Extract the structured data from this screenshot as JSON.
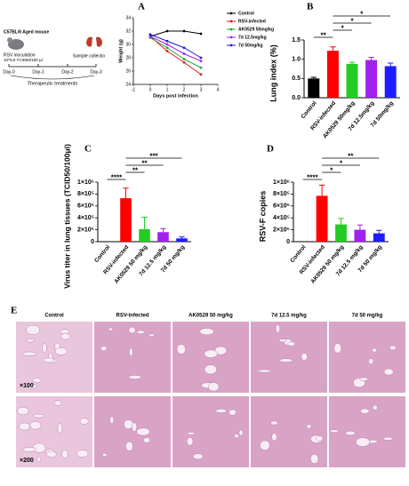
{
  "chart_data": [
    {
      "type": "line",
      "panel": "A",
      "ylabel": "Weight (g)",
      "xlabel": "Days post infection",
      "xlim": [
        -1,
        4
      ],
      "xticks": [
        -1,
        0,
        1,
        2,
        3,
        4
      ],
      "ylim": [
        24,
        34
      ],
      "yticks": [
        24,
        26,
        28,
        30,
        32,
        34
      ],
      "x": [
        0,
        1,
        2,
        3
      ],
      "series": [
        {
          "name": "Control",
          "color": "#000000",
          "values": [
            31.2,
            32,
            32,
            31.6
          ]
        },
        {
          "name": "RSV-infected",
          "color": "#e8141b",
          "values": [
            31.2,
            29,
            27.3,
            25.5
          ]
        },
        {
          "name": "AK0529 50mg/kg",
          "color": "#22a838",
          "values": [
            31,
            29.5,
            27.8,
            26.5
          ]
        },
        {
          "name": "7d 12.5mg/kg",
          "color": "#a020f0",
          "values": [
            31.2,
            30,
            28.6,
            27.5
          ]
        },
        {
          "name": "7d 50mg/kg",
          "color": "#1c1cd6",
          "values": [
            31.5,
            30.5,
            29.5,
            28
          ]
        }
      ]
    },
    {
      "type": "bar",
      "panel": "B",
      "ylabel": "Lung index (%)",
      "categories": [
        "Control",
        "RSV-infected",
        "AK0529 50mg/kg",
        "7d 12.5mg/kg",
        "7d 50mg/kg"
      ],
      "values": [
        0.5,
        1.22,
        0.88,
        0.98,
        0.82
      ],
      "errors": [
        0.03,
        0.1,
        0.04,
        0.07,
        0.08
      ],
      "colors": [
        "#000000",
        "#ff0000",
        "#22cc22",
        "#a020f0",
        "#1c1cff"
      ],
      "ylim": [
        0,
        1.5
      ],
      "yticks": [
        {
          "value": 0,
          "label": "0.0"
        },
        0.5,
        {
          "value": 1,
          "label": "1.0"
        },
        1.5
      ],
      "comparisons": [
        {
          "groups": [
            "Control",
            "RSV-infected"
          ],
          "label": "**"
        },
        {
          "groups": [
            "RSV-infected",
            "AK0529 50mg/kg"
          ],
          "label": "*"
        },
        {
          "groups": [
            "RSV-infected",
            "7d 12.5mg/kg"
          ],
          "label": "*"
        },
        {
          "groups": [
            "RSV-infected",
            "7d 50mg/kg"
          ],
          "label": "*"
        }
      ]
    },
    {
      "type": "bar",
      "panel": "C",
      "ylabel": "Virus titer in lung tissues (TCID50/100μl)",
      "categories": [
        "Control",
        "RSV-infected",
        "AK0529  50 mg/kg",
        "7d  12.5 mg/kg",
        "7d  50 mg/kg"
      ],
      "values": [
        0,
        730000,
        210000,
        160000,
        55000
      ],
      "errors": [
        0,
        170000,
        200000,
        60000,
        25000
      ],
      "colors": [
        "#000000",
        "#ff0000",
        "#22cc22",
        "#a020f0",
        "#1c1cff"
      ],
      "ylim": [
        0,
        1000000
      ],
      "yticks": [
        0,
        {
          "value": 200000,
          "label": "2×10⁵"
        },
        {
          "value": 400000,
          "label": "4×10⁵"
        },
        {
          "value": 600000,
          "label": "6×10⁵"
        },
        {
          "value": 800000,
          "label": "8×10⁵"
        },
        {
          "value": 1000000,
          "label": "1×10⁶"
        }
      ],
      "comparisons": [
        {
          "groups": [
            "Control",
            "RSV-infected"
          ],
          "label": "****"
        },
        {
          "groups": [
            "RSV-infected",
            "AK0529  50 mg/kg"
          ],
          "label": "**"
        },
        {
          "groups": [
            "RSV-infected",
            "7d  12.5 mg/kg"
          ],
          "label": "**"
        },
        {
          "groups": [
            "RSV-infected",
            "7d  50 mg/kg"
          ],
          "label": "***"
        }
      ]
    },
    {
      "type": "bar",
      "panel": "D",
      "ylabel": "RSV-F copies",
      "categories": [
        "Control",
        "RSV-infected",
        "AK0529 50 mg/kg",
        "7d 12.5 mg/kg",
        "7d 50 mg/kg"
      ],
      "values": [
        0,
        770000,
        290000,
        200000,
        140000
      ],
      "errors": [
        0,
        180000,
        100000,
        80000,
        50000
      ],
      "colors": [
        "#000000",
        "#ff0000",
        "#22cc22",
        "#a020f0",
        "#1c1cff"
      ],
      "ylim": [
        0,
        1000000
      ],
      "yticks": [
        0,
        {
          "value": 200000,
          "label": "2×10⁵"
        },
        {
          "value": 400000,
          "label": "4×10⁵"
        },
        {
          "value": 600000,
          "label": "6×10⁵"
        },
        {
          "value": 800000,
          "label": "8×10⁵"
        },
        {
          "value": 1000000,
          "label": "1×10⁶"
        }
      ],
      "comparisons": [
        {
          "groups": [
            "Control",
            "RSV-infected"
          ],
          "label": "****"
        },
        {
          "groups": [
            "RSV-infected",
            "AK0529 50 mg/kg"
          ],
          "label": "*"
        },
        {
          "groups": [
            "RSV-infected",
            "7d 12.5 mg/kg"
          ],
          "label": "*"
        },
        {
          "groups": [
            "RSV-infected",
            "7d 50 mg/kg"
          ],
          "label": "**"
        }
      ]
    }
  ],
  "schematic": {
    "mouse": "C57BL/6 Aged mouse",
    "inoculation": "RSV inoculation",
    "dose": "10^5.5 TCID50/100 μl",
    "days": [
      "Day-0",
      "Day-1",
      "Day-2",
      "Day-3"
    ],
    "treatment": "Therapeutic treatments",
    "collection": "Sample collectio"
  },
  "histology": {
    "panel": "E",
    "columns": [
      "Control",
      "RSV-infected",
      "AK0529 50 mg/kg",
      "7d 12.5 mg/kg",
      "7d 50 mg/kg"
    ],
    "rows": [
      "×100",
      "×200"
    ]
  }
}
